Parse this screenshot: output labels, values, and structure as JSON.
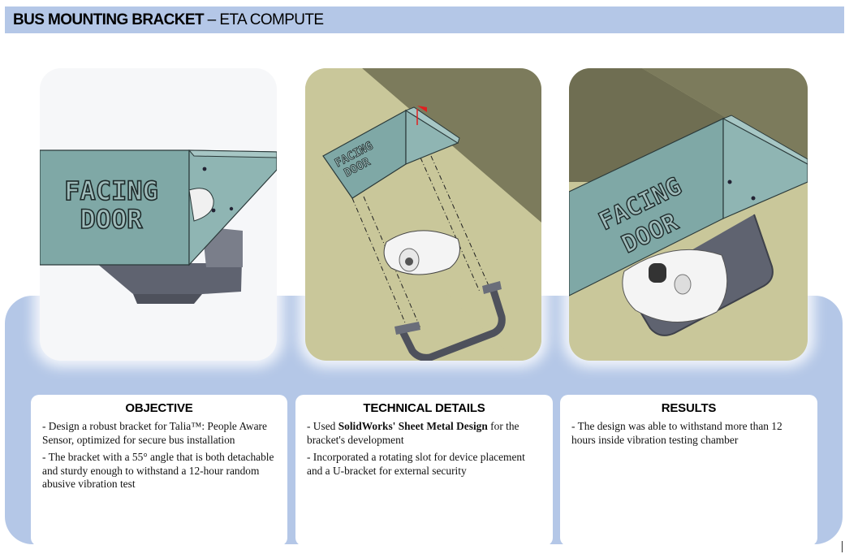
{
  "header": {
    "title_bold": "BUS MOUNTING BRACKET",
    "title_rest": " – ETA COMPUTE"
  },
  "images": {
    "bracket_label_line1": "FACING",
    "bracket_label_line2": "DOOR"
  },
  "sections": [
    {
      "heading": "OBJECTIVE",
      "bullets": [
        "- Design a robust bracket for Talia™: People Aware Sensor, optimized for secure bus installation",
        "- The bracket with a 55° angle that is both detachable and sturdy enough to withstand a 12-hour random abusive vibration test"
      ]
    },
    {
      "heading": "TECHNICAL DETAILS",
      "bullet1_pre": "- Used ",
      "bullet1_bold": "SolidWorks' Sheet Metal Design",
      "bullet1_post": " for the bracket's development",
      "bullet2": "- Incorporated a rotating slot for device placement and a U-bracket for external security"
    },
    {
      "heading": "RESULTS",
      "bullets": [
        "- The design was able to withstand more than 12 hours inside vibration testing chamber"
      ]
    }
  ],
  "colors": {
    "title_bar": "#b4c7e7",
    "panel": "#b4c7e7",
    "bracket_face": "#7fa8a6",
    "u_bracket": "#6a6e7a",
    "ceiling_light": "#c9c79a",
    "ceiling_dark": "#7c7b5c"
  }
}
